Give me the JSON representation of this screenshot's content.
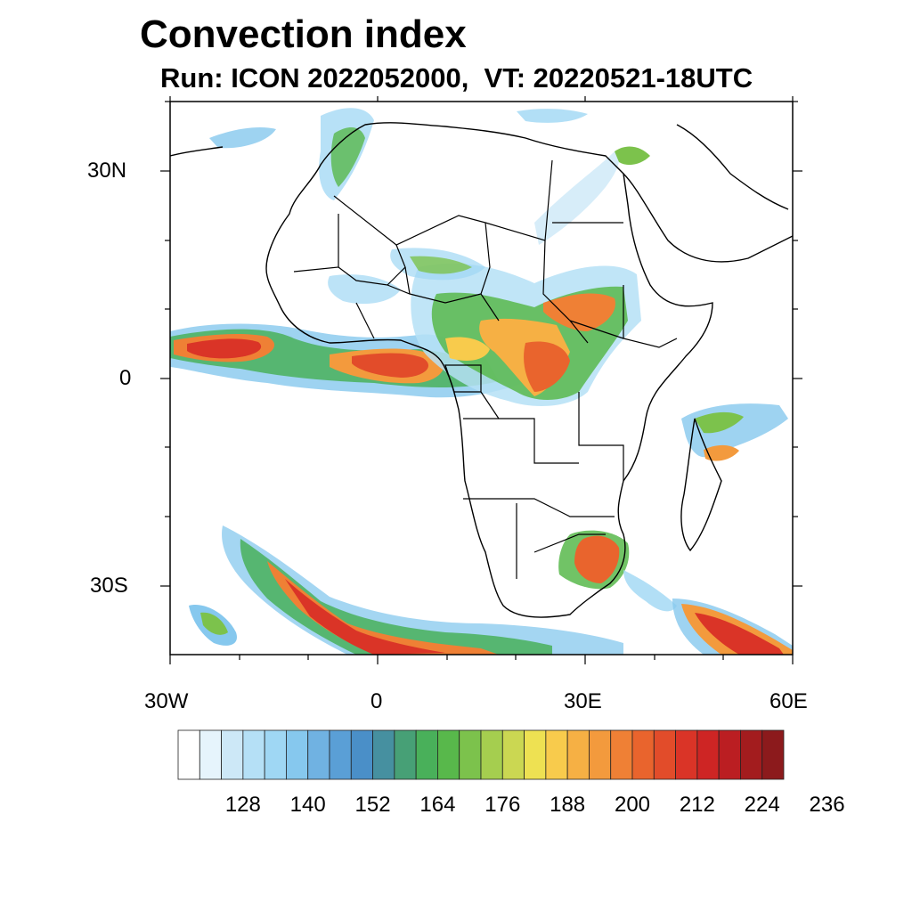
{
  "header": {
    "title": "Convection index",
    "subtitle": "Run: ICON 2022052000,  VT: 20220521-18UTC"
  },
  "map": {
    "region": "Africa and surrounding oceans",
    "projection": "cylindrical equidistant",
    "lon_range": [
      -30,
      60
    ],
    "lat_range": [
      -40,
      40
    ],
    "y_tick_labels": [
      "30N",
      "0",
      "30S"
    ],
    "x_tick_labels": [
      "30W",
      "0",
      "30E",
      "60E"
    ]
  },
  "colorbar": {
    "labels": [
      "128",
      "140",
      "152",
      "164",
      "176",
      "188",
      "200",
      "212",
      "224",
      "236"
    ],
    "colors": [
      "#ffffff",
      "#e6f4fc",
      "#cde8f7",
      "#b5e0f6",
      "#9fd7f4",
      "#86c8ee",
      "#70b2e2",
      "#5a9fd6",
      "#4a8fc8",
      "#4690a0",
      "#47a076",
      "#49b05a",
      "#58b84b",
      "#7cc24c",
      "#a5ce4f",
      "#cbd752",
      "#eee152",
      "#f8cb4c",
      "#f6b044",
      "#f39a3d",
      "#ef8035",
      "#e9642d",
      "#e24c2a",
      "#da3427",
      "#ce2524",
      "#bb1e22",
      "#a31c1e",
      "#8c1a1c"
    ]
  }
}
